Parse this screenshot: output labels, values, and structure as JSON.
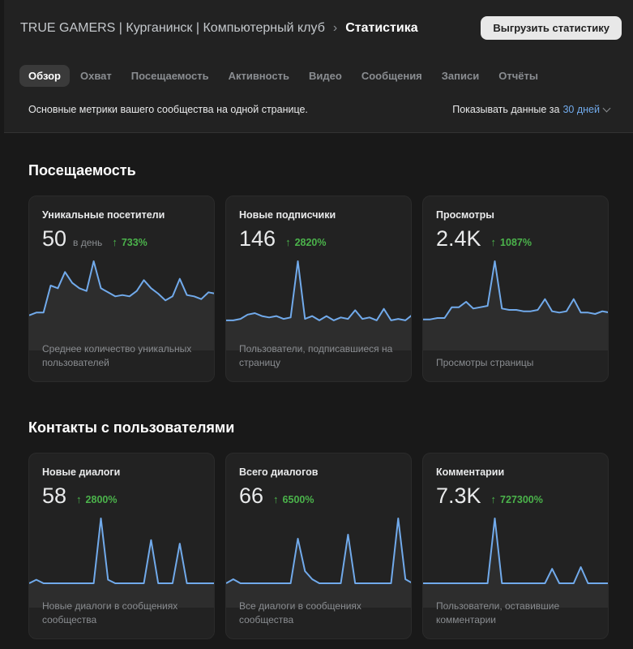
{
  "header": {
    "group_name": "TRUE GAMERS | Курганинск | Компьютерный клуб",
    "separator": "›",
    "current_page": "Статистика",
    "export_label": "Выгрузить статистику"
  },
  "tabs": [
    "Обзор",
    "Охват",
    "Посещаемость",
    "Активность",
    "Видео",
    "Сообщения",
    "Записи",
    "Отчёты"
  ],
  "active_tab": "Обзор",
  "subbar": {
    "description": "Основные метрики вашего сообщества на одной странице.",
    "period_prefix": "Показывать данные за",
    "period_value": "30 дней"
  },
  "colors": {
    "line": "#71aaeb",
    "delta": "#4bb34b",
    "accent": "#71aaeb"
  },
  "sections": [
    {
      "title": "Посещаемость",
      "cards": [
        {
          "title": "Уникальные посетители",
          "value": "50",
          "unit": "в день",
          "delta": "733%",
          "description": "Среднее количество уникальных пользователей",
          "series": [
            8,
            10,
            10,
            30,
            28,
            40,
            32,
            28,
            26,
            48,
            28,
            25,
            22,
            23,
            22,
            26,
            34,
            28,
            24,
            19,
            22,
            35,
            23,
            22,
            20,
            25,
            24
          ]
        },
        {
          "title": "Новые подписчики",
          "value": "146",
          "unit": "",
          "delta": "2820%",
          "description": "Пользователи, подписавшиеся на страницу",
          "series": [
            4,
            4,
            5,
            8,
            9,
            7,
            6,
            7,
            5,
            6,
            45,
            5,
            7,
            4,
            7,
            4,
            6,
            5,
            11,
            5,
            6,
            4,
            12,
            4,
            5,
            4,
            8
          ]
        },
        {
          "title": "Просмотры",
          "value": "2.4K",
          "unit": "",
          "delta": "1087%",
          "description": "Просмотры страницы",
          "series": [
            5,
            5,
            6,
            6,
            14,
            14,
            18,
            13,
            14,
            15,
            48,
            13,
            12,
            12,
            11,
            11,
            12,
            20,
            11,
            10,
            11,
            20,
            10,
            10,
            9,
            11,
            10
          ]
        }
      ]
    },
    {
      "title": "Контакты с пользователями",
      "cards": [
        {
          "title": "Новые диалоги",
          "value": "58",
          "unit": "",
          "delta": "2800%",
          "description": "Новые диалоги в сообщениях сообщества",
          "series": [
            0,
            1,
            0,
            0,
            0,
            0,
            0,
            0,
            0,
            0,
            18,
            1,
            0,
            0,
            0,
            0,
            0,
            12,
            0,
            0,
            0,
            11,
            0,
            0,
            0,
            0,
            0
          ]
        },
        {
          "title": "Всего диалогов",
          "value": "66",
          "unit": "",
          "delta": "6500%",
          "description": "Все диалоги в сообщениях сообщества",
          "series": [
            0,
            1,
            0,
            0,
            0,
            0,
            0,
            0,
            0,
            0,
            11,
            3,
            1,
            0,
            0,
            0,
            0,
            12,
            0,
            0,
            0,
            0,
            0,
            0,
            16,
            1,
            0
          ]
        },
        {
          "title": "Комментарии",
          "value": "7.3K",
          "unit": "",
          "delta": "727300%",
          "description": "Пользователи, оставившие комментарии",
          "series": [
            0,
            0,
            0,
            0,
            0,
            0,
            0,
            0,
            0,
            0,
            36,
            0,
            0,
            0,
            0,
            0,
            0,
            0,
            8,
            0,
            0,
            0,
            9,
            0,
            0,
            0,
            0
          ]
        }
      ]
    }
  ]
}
